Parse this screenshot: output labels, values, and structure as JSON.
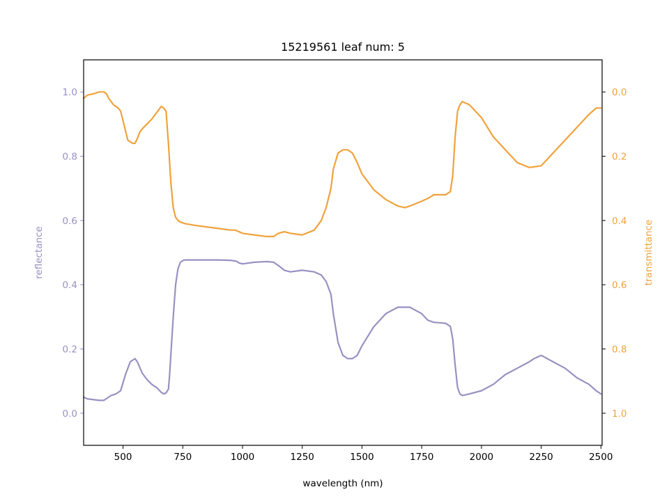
{
  "chart_data": {
    "type": "line",
    "title": "15219561 leaf num: 5",
    "xlabel": "wavelength (nm)",
    "ylabel_left": "reflectance",
    "ylabel_right": "transmittance",
    "xlim": [
      335,
      2505
    ],
    "ylim_left": [
      -0.1,
      1.1
    ],
    "ylim_right": [
      1.1,
      -0.1
    ],
    "right_axis_inverted": true,
    "x_ticks": [
      "500",
      "750",
      "1000",
      "1250",
      "1500",
      "1750",
      "2000",
      "2250",
      "2500"
    ],
    "y_left_ticks": [
      "0.0",
      "0.2",
      "0.4",
      "0.6",
      "0.8",
      "1.0"
    ],
    "y_right_ticks": [
      "0.0",
      "0.2",
      "0.4",
      "0.6",
      "0.8",
      "1.0"
    ],
    "grid": false,
    "legend": "none",
    "series": [
      {
        "axis": "left",
        "color": "#9990c2",
        "x": [
          335,
          350,
          400,
          420,
          450,
          470,
          490,
          510,
          530,
          550,
          560,
          580,
          600,
          620,
          640,
          660,
          670,
          680,
          690,
          695,
          700,
          710,
          720,
          730,
          740,
          750,
          760,
          800,
          900,
          950,
          975,
          985,
          1000,
          1050,
          1100,
          1130,
          1150,
          1175,
          1200,
          1250,
          1300,
          1330,
          1350,
          1370,
          1380,
          1400,
          1420,
          1440,
          1460,
          1480,
          1500,
          1550,
          1600,
          1650,
          1700,
          1750,
          1775,
          1800,
          1850,
          1870,
          1880,
          1890,
          1900,
          1910,
          1920,
          1950,
          2000,
          2050,
          2100,
          2150,
          2200,
          2220,
          2250,
          2300,
          2350,
          2400,
          2450,
          2480,
          2500
        ],
        "values": [
          0.05,
          0.045,
          0.04,
          0.04,
          0.055,
          0.06,
          0.07,
          0.12,
          0.16,
          0.17,
          0.16,
          0.125,
          0.105,
          0.09,
          0.08,
          0.065,
          0.06,
          0.063,
          0.075,
          0.12,
          0.18,
          0.3,
          0.4,
          0.45,
          0.47,
          0.475,
          0.477,
          0.477,
          0.477,
          0.476,
          0.473,
          0.468,
          0.465,
          0.47,
          0.472,
          0.47,
          0.46,
          0.445,
          0.44,
          0.445,
          0.44,
          0.43,
          0.41,
          0.37,
          0.31,
          0.22,
          0.18,
          0.17,
          0.17,
          0.18,
          0.21,
          0.27,
          0.31,
          0.33,
          0.33,
          0.31,
          0.29,
          0.283,
          0.28,
          0.27,
          0.23,
          0.15,
          0.08,
          0.06,
          0.055,
          0.06,
          0.07,
          0.09,
          0.12,
          0.14,
          0.16,
          0.17,
          0.18,
          0.16,
          0.14,
          0.11,
          0.09,
          0.07,
          0.06
        ]
      },
      {
        "axis": "right",
        "color": "#f0a23c",
        "x": [
          335,
          350,
          380,
          400,
          420,
          430,
          440,
          460,
          480,
          490,
          500,
          520,
          540,
          550,
          560,
          570,
          580,
          600,
          620,
          640,
          660,
          670,
          680,
          690,
          700,
          710,
          720,
          730,
          740,
          760,
          800,
          850,
          900,
          950,
          970,
          1000,
          1050,
          1100,
          1130,
          1150,
          1175,
          1200,
          1250,
          1300,
          1330,
          1350,
          1370,
          1380,
          1400,
          1420,
          1440,
          1460,
          1480,
          1500,
          1550,
          1600,
          1650,
          1680,
          1700,
          1750,
          1780,
          1800,
          1820,
          1850,
          1870,
          1880,
          1890,
          1900,
          1910,
          1920,
          1950,
          2000,
          2050,
          2100,
          2150,
          2200,
          2250,
          2300,
          2350,
          2400,
          2450,
          2480,
          2500
        ],
        "values": [
          0.02,
          0.01,
          0.005,
          0.0,
          0.0,
          0.005,
          0.02,
          0.04,
          0.05,
          0.06,
          0.09,
          0.15,
          0.16,
          0.16,
          0.145,
          0.125,
          0.115,
          0.1,
          0.085,
          0.065,
          0.045,
          0.05,
          0.06,
          0.16,
          0.28,
          0.36,
          0.39,
          0.4,
          0.405,
          0.41,
          0.415,
          0.42,
          0.425,
          0.43,
          0.43,
          0.44,
          0.445,
          0.45,
          0.45,
          0.44,
          0.435,
          0.44,
          0.445,
          0.43,
          0.4,
          0.36,
          0.3,
          0.24,
          0.19,
          0.18,
          0.18,
          0.19,
          0.22,
          0.255,
          0.305,
          0.335,
          0.355,
          0.36,
          0.355,
          0.34,
          0.33,
          0.32,
          0.32,
          0.32,
          0.31,
          0.26,
          0.14,
          0.06,
          0.04,
          0.03,
          0.04,
          0.08,
          0.14,
          0.18,
          0.22,
          0.235,
          0.23,
          0.19,
          0.15,
          0.11,
          0.07,
          0.05,
          0.05
        ]
      }
    ]
  }
}
